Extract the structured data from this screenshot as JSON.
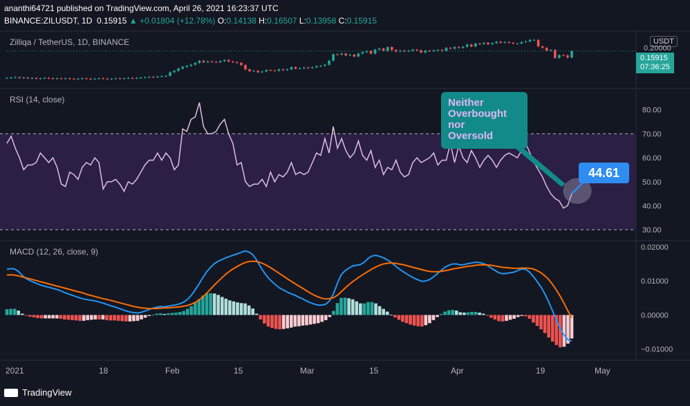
{
  "header": {
    "publish_line": "ananthi64721 published on TradingView.com, April 26, 2021 16:23:37 UTC",
    "symbol_line": "BINANCE:ZILUSDT, 1D",
    "last": "0.15915",
    "change": "+0.01804 (+12.78%)",
    "o_label": "O:",
    "o": "0.14138",
    "h_label": "H:",
    "h": "0.16507",
    "l_label": "L:",
    "l": "0.13958",
    "c_label": "C:",
    "c": "0.15915"
  },
  "price_pane": {
    "label": "Zilliqa / TetherUS, 1D, BINANCE",
    "currency": "USDT",
    "price_badge": "0.15915",
    "countdown": "07:36:25",
    "axis_label": "0.20000"
  },
  "rsi_pane": {
    "label": "RSI (14, close)"
  },
  "macd_pane": {
    "label": "MACD (12, 26, close, 9)"
  },
  "annotation": {
    "callout_lines": [
      "Neither",
      "Overbought",
      "nor",
      "Oversold"
    ],
    "value_badge": "44.61"
  },
  "x_axis": [
    "2021",
    "18",
    "Feb",
    "15",
    "Mar",
    "15",
    "Apr",
    "19",
    "May"
  ],
  "footer": {
    "brand": "TradingView"
  },
  "colors": {
    "bg": "#131722",
    "up": "#26a69a",
    "down": "#ef5350",
    "rsi": "#e1bee7",
    "macd": "#2196f3",
    "signal": "#ff6d00",
    "band": "#2b1f44"
  },
  "chart_data": [
    {
      "type": "candlestick",
      "title": "Zilliqa / TetherUS, 1D, BINANCE",
      "ylabel": "USDT",
      "y_ticks": [
        0.2
      ],
      "close": [
        0.084,
        0.085,
        0.086,
        0.084,
        0.085,
        0.083,
        0.084,
        0.082,
        0.083,
        0.084,
        0.083,
        0.082,
        0.083,
        0.082,
        0.083,
        0.082,
        0.081,
        0.082,
        0.083,
        0.082,
        0.081,
        0.082,
        0.083,
        0.082,
        0.081,
        0.082,
        0.083,
        0.082,
        0.083,
        0.084,
        0.083,
        0.084,
        0.085,
        0.086,
        0.087,
        0.086,
        0.088,
        0.089,
        0.09,
        0.1,
        0.104,
        0.11,
        0.115,
        0.118,
        0.121,
        0.126,
        0.132,
        0.128,
        0.13,
        0.129,
        0.128,
        0.131,
        0.134,
        0.13,
        0.128,
        0.126,
        0.12,
        0.108,
        0.103,
        0.104,
        0.1,
        0.102,
        0.106,
        0.105,
        0.104,
        0.108,
        0.106,
        0.108,
        0.114,
        0.11,
        0.111,
        0.113,
        0.112,
        0.114,
        0.117,
        0.118,
        0.121,
        0.132,
        0.15,
        0.149,
        0.152,
        0.147,
        0.149,
        0.144,
        0.152,
        0.156,
        0.159,
        0.152,
        0.163,
        0.166,
        0.16,
        0.17,
        0.162,
        0.158,
        0.16,
        0.158,
        0.16,
        0.163,
        0.161,
        0.155,
        0.16,
        0.159,
        0.161,
        0.162,
        0.16,
        0.168,
        0.166,
        0.17,
        0.168,
        0.171,
        0.177,
        0.172,
        0.18,
        0.179,
        0.182,
        0.178,
        0.181,
        0.185,
        0.182,
        0.184,
        0.182,
        0.18,
        0.18,
        0.184,
        0.186,
        0.19,
        0.19,
        0.172,
        0.168,
        0.16,
        0.162,
        0.14,
        0.148,
        0.147,
        0.141,
        0.159
      ]
    },
    {
      "type": "line",
      "title": "RSI (14, close)",
      "ylim": [
        26,
        88
      ],
      "y_ticks": [
        30,
        40,
        50,
        60,
        70,
        80
      ],
      "bands": [
        30,
        70
      ],
      "values": [
        66,
        69,
        64,
        60,
        55,
        57,
        57,
        58,
        62,
        60,
        58,
        60,
        56,
        49,
        48,
        54,
        53,
        51,
        56,
        58,
        57,
        60,
        58,
        47,
        50,
        50,
        51,
        49,
        46,
        50,
        49,
        51,
        54,
        57,
        59,
        59,
        62,
        59,
        62,
        60,
        55,
        57,
        72,
        71,
        76,
        77,
        83,
        73,
        70,
        70,
        71,
        74,
        76,
        70,
        66,
        57,
        58,
        50,
        48,
        49,
        49,
        51,
        48,
        54,
        50,
        53,
        52,
        54,
        58,
        53,
        54,
        53,
        54,
        58,
        62,
        61,
        68,
        62,
        73,
        64,
        68,
        63,
        60,
        62,
        67,
        61,
        59,
        63,
        56,
        59,
        53,
        56,
        55,
        59,
        54,
        52,
        53,
        58,
        60,
        58,
        59,
        60,
        62,
        57,
        59,
        59,
        66,
        58,
        65,
        60,
        58,
        63,
        60,
        56,
        59,
        61,
        59,
        56,
        59,
        61,
        62,
        61,
        60,
        63,
        66,
        62,
        58,
        55,
        52,
        48,
        45,
        43,
        42,
        39,
        40,
        45
      ]
    },
    {
      "type": "macd",
      "title": "MACD (12, 26, close, 9)",
      "ylim": [
        -0.0125,
        0.021
      ],
      "y_ticks": [
        -0.01,
        0,
        0.01,
        0.02
      ],
      "macd": [
        0.0134,
        0.0136,
        0.0135,
        0.0128,
        0.0116,
        0.0107,
        0.0101,
        0.0096,
        0.0091,
        0.0087,
        0.0084,
        0.0081,
        0.0078,
        0.0075,
        0.0071,
        0.0066,
        0.0062,
        0.0058,
        0.0054,
        0.005,
        0.0047,
        0.0045,
        0.0043,
        0.0041,
        0.0038,
        0.0035,
        0.0031,
        0.0027,
        0.0024,
        0.002,
        0.0016,
        0.0012,
        0.0009,
        0.0007,
        0.0006,
        0.0008,
        0.0012,
        0.0016,
        0.002,
        0.0023,
        0.0025,
        0.0024,
        0.0026,
        0.0028,
        0.003,
        0.0033,
        0.0038,
        0.0046,
        0.0058,
        0.0074,
        0.0091,
        0.011,
        0.0127,
        0.014,
        0.0151,
        0.0158,
        0.0163,
        0.0168,
        0.0172,
        0.0176,
        0.018,
        0.0184,
        0.0188,
        0.0185,
        0.0177,
        0.0161,
        0.0141,
        0.0124,
        0.0109,
        0.0098,
        0.0088,
        0.0079,
        0.0073,
        0.0067,
        0.0062,
        0.0058,
        0.0052,
        0.0047,
        0.0041,
        0.0036,
        0.0032,
        0.0029,
        0.0029,
        0.0032,
        0.0042,
        0.0063,
        0.0093,
        0.0118,
        0.013,
        0.0138,
        0.0144,
        0.0146,
        0.0148,
        0.0155,
        0.0166,
        0.0173,
        0.0175,
        0.0172,
        0.0168,
        0.0162,
        0.0154,
        0.0145,
        0.0136,
        0.0128,
        0.0121,
        0.0114,
        0.0108,
        0.0103,
        0.0099,
        0.01,
        0.0104,
        0.0112,
        0.0121,
        0.0131,
        0.014,
        0.0146,
        0.015,
        0.015,
        0.0147,
        0.0148,
        0.0151,
        0.0153,
        0.0155,
        0.0154,
        0.0151,
        0.0146,
        0.0138,
        0.0131,
        0.0124,
        0.0121,
        0.0122,
        0.0124,
        0.0126,
        0.0131,
        0.0135,
        0.0134,
        0.0126,
        0.0113,
        0.0098,
        0.0082,
        0.0062,
        0.0038,
        0.0012,
        -0.0015,
        -0.004,
        -0.0059,
        -0.0072,
        -0.0077
      ],
      "signal": [
        0.0117,
        0.0118,
        0.0117,
        0.0115,
        0.0112,
        0.0109,
        0.0106,
        0.0103,
        0.01,
        0.0097,
        0.0094,
        0.0091,
        0.0088,
        0.0085,
        0.0082,
        0.0079,
        0.0076,
        0.0073,
        0.007,
        0.0067,
        0.0064,
        0.006,
        0.0057,
        0.0054,
        0.0051,
        0.0048,
        0.0046,
        0.0043,
        0.004,
        0.0037,
        0.0034,
        0.0031,
        0.0028,
        0.0025,
        0.0023,
        0.0021,
        0.002,
        0.0019,
        0.0019,
        0.0019,
        0.002,
        0.0021,
        0.0021,
        0.0022,
        0.0023,
        0.0024,
        0.0026,
        0.0028,
        0.0032,
        0.0037,
        0.0044,
        0.0053,
        0.0064,
        0.0076,
        0.0088,
        0.0099,
        0.011,
        0.012,
        0.0129,
        0.0136,
        0.0143,
        0.0149,
        0.0154,
        0.0157,
        0.0158,
        0.0157,
        0.0154,
        0.0149,
        0.0143,
        0.0136,
        0.0129,
        0.0121,
        0.0114,
        0.0106,
        0.0099,
        0.0092,
        0.0085,
        0.0078,
        0.0071,
        0.0064,
        0.0058,
        0.0053,
        0.0049,
        0.0047,
        0.0048,
        0.0051,
        0.0058,
        0.0068,
        0.0079,
        0.0089,
        0.0098,
        0.0106,
        0.0114,
        0.0121,
        0.0128,
        0.0135,
        0.0141,
        0.0146,
        0.015,
        0.0152,
        0.0153,
        0.0152,
        0.015,
        0.0148,
        0.0145,
        0.0142,
        0.0139,
        0.0136,
        0.0133,
        0.013,
        0.0128,
        0.0127,
        0.0127,
        0.0128,
        0.013,
        0.0132,
        0.0135,
        0.0137,
        0.0139,
        0.0141,
        0.0143,
        0.0144,
        0.0146,
        0.0147,
        0.0147,
        0.0147,
        0.0146,
        0.0144,
        0.0142,
        0.014,
        0.0139,
        0.0138,
        0.0137,
        0.0137,
        0.0138,
        0.0138,
        0.0137,
        0.0135,
        0.013,
        0.0124,
        0.0115,
        0.0104,
        0.009,
        0.0073,
        0.0055,
        0.0034,
        0.0012,
        -0.0008
      ]
    }
  ]
}
